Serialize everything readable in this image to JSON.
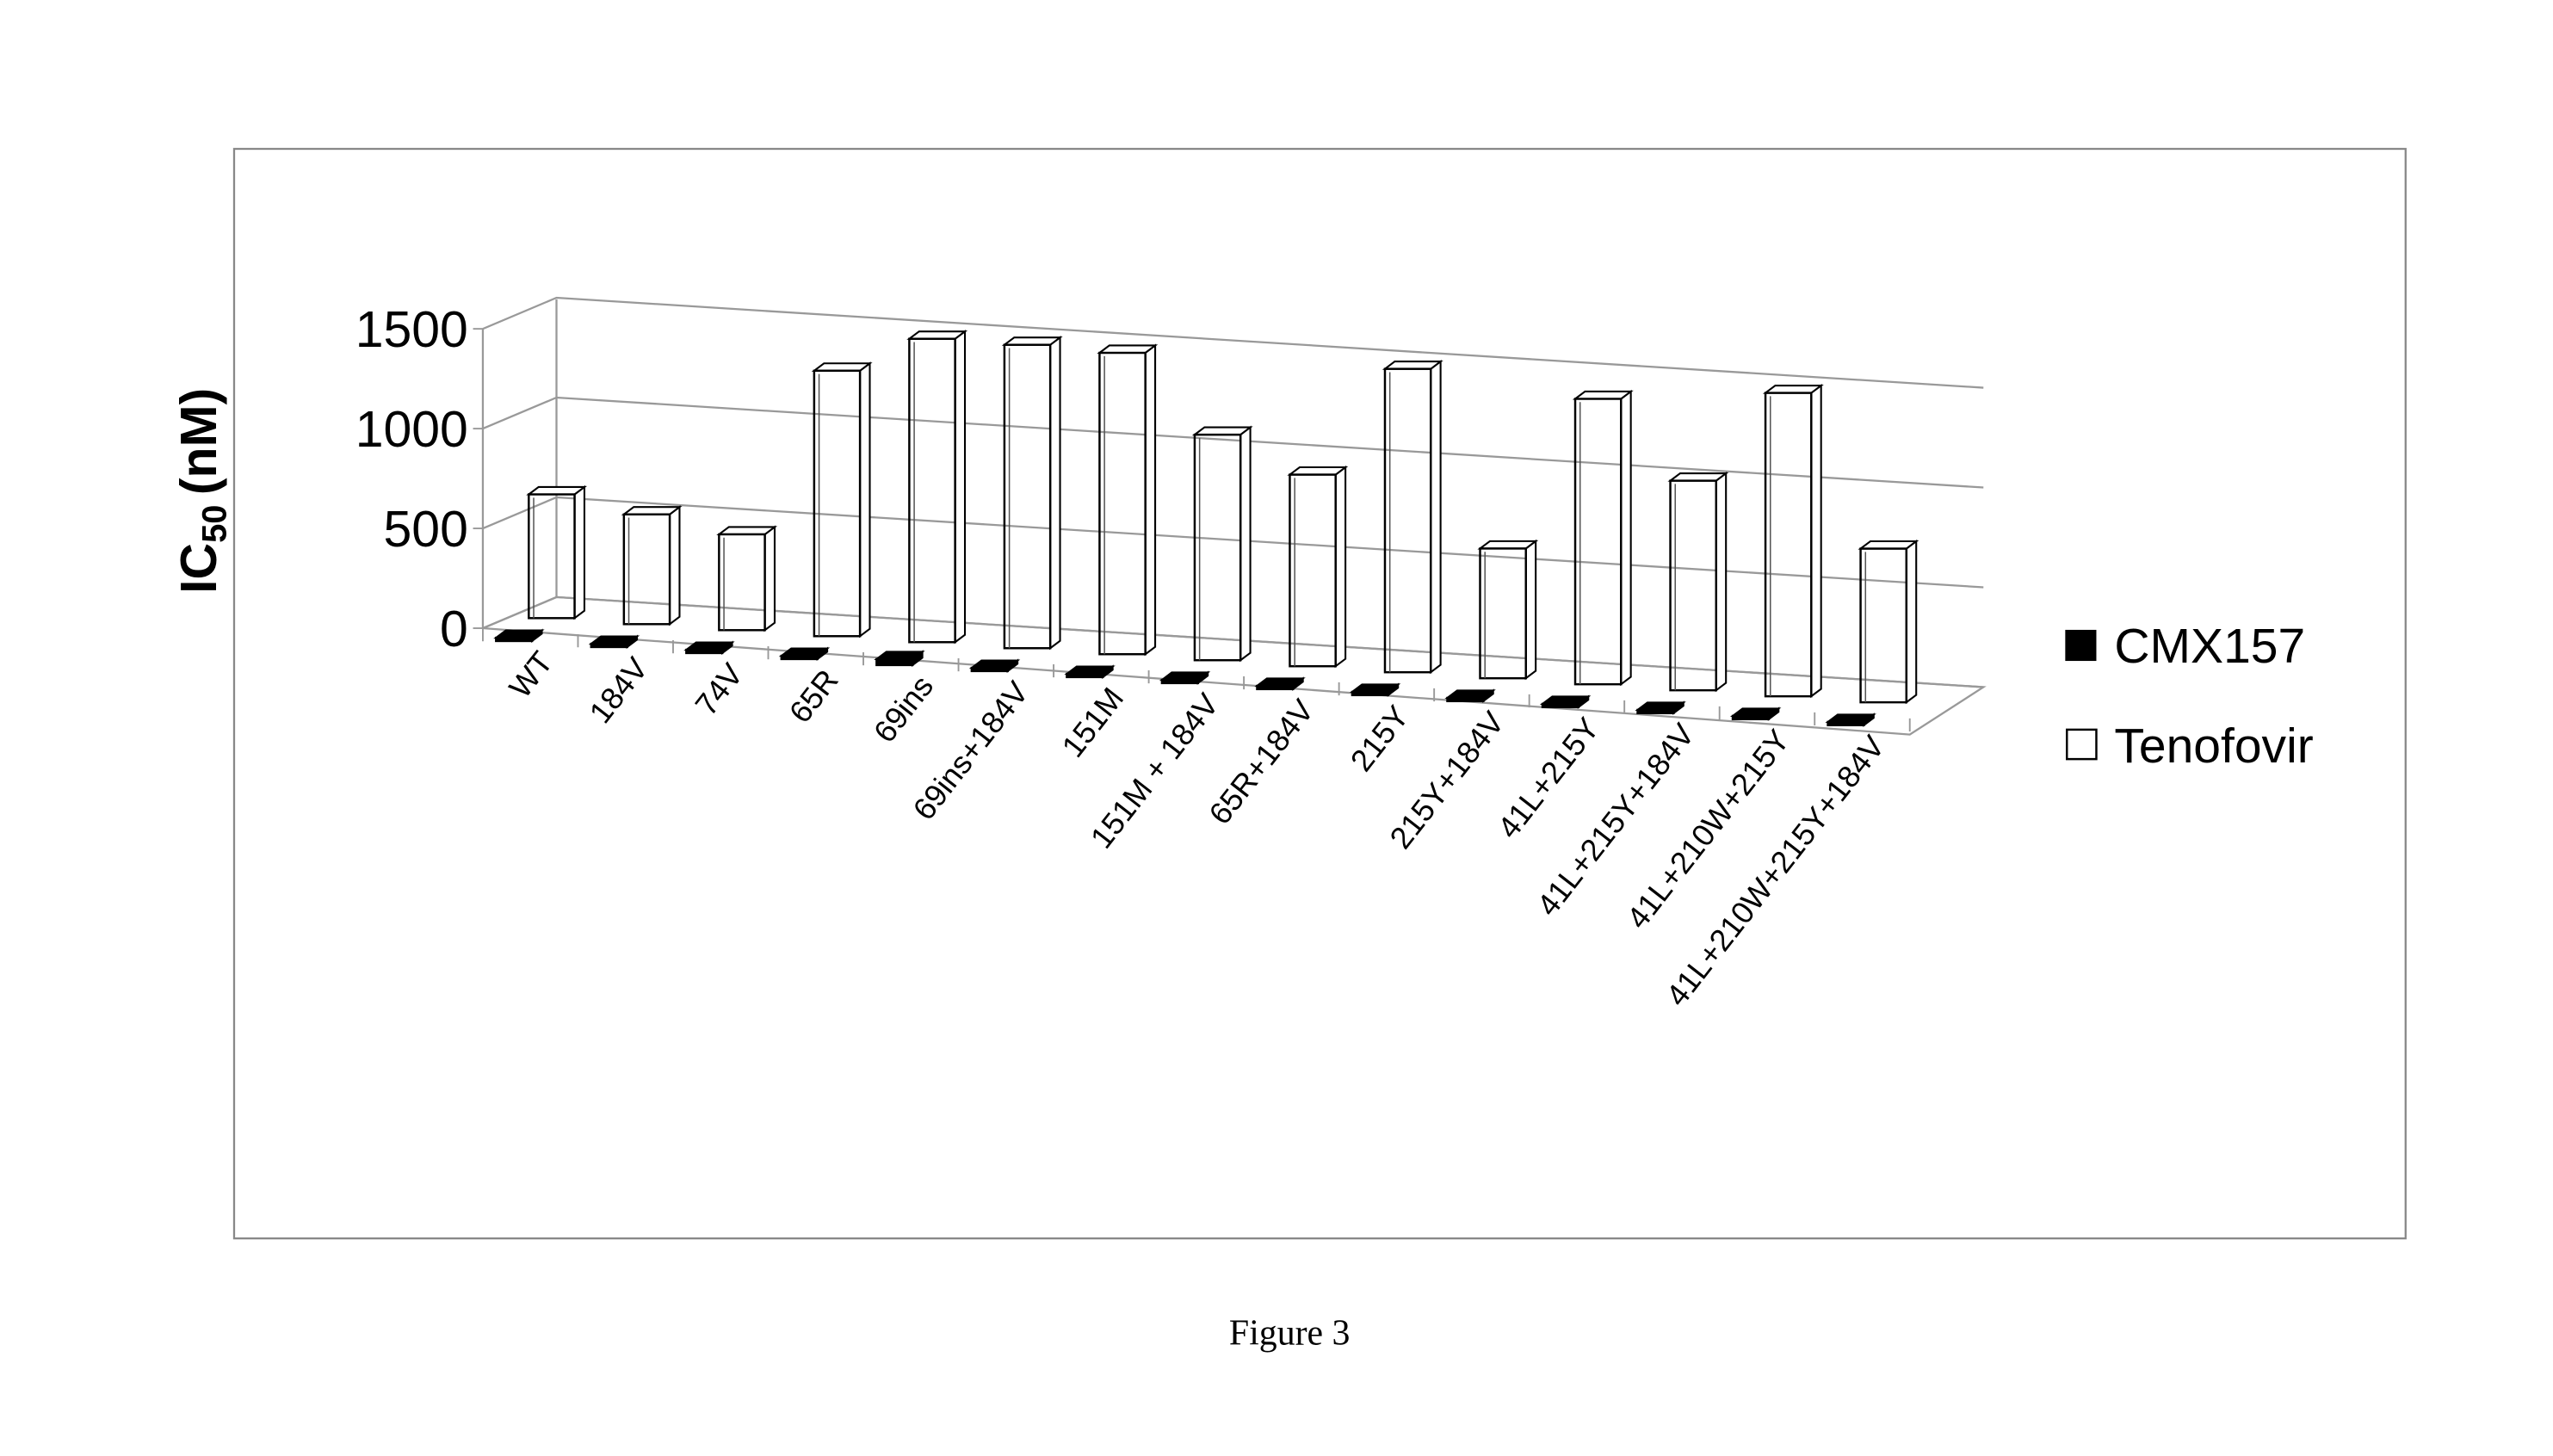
{
  "chart_data": {
    "type": "bar",
    "subtype": "3d-clustered-column",
    "title": "",
    "ylabel": "IC50 (nM)",
    "ylabel_main": "IC",
    "ylabel_sub": "50",
    "ylabel_unit": "(nM)",
    "xlabel": "",
    "ylim": [
      0,
      1500
    ],
    "yticks": [
      "0",
      "500",
      "1000",
      "1500"
    ],
    "ytick_values": [
      0,
      500,
      1000,
      1500
    ],
    "grid": true,
    "legend_position": "right",
    "categories": [
      "WT",
      "184V",
      "74V",
      "65R",
      "69ins",
      "69ins+184V",
      "151M",
      "151M + 184V",
      "65R+184V",
      "215Y",
      "215Y+184V",
      "41L+215Y",
      "41L+215Y+184V",
      "41L+210W+215Y",
      "41L+210W+215Y+184V"
    ],
    "series": [
      {
        "name": "CMX157",
        "color": "#000000",
        "values": [
          10,
          10,
          10,
          10,
          60,
          10,
          10,
          10,
          10,
          10,
          10,
          10,
          10,
          10,
          10
        ]
      },
      {
        "name": "Tenofovir",
        "color": "#ffffff",
        "values": [
          620,
          550,
          480,
          1330,
          1520,
          1520,
          1510,
          1130,
          960,
          1520,
          650,
          1430,
          1050,
          1520,
          770
        ]
      }
    ]
  },
  "caption": "Figure 3"
}
